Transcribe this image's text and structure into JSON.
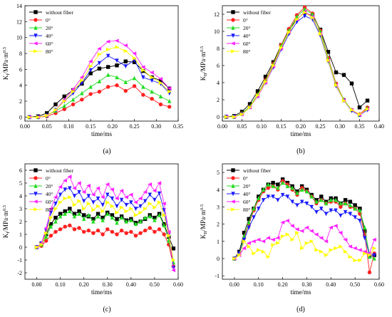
{
  "legend_labels": [
    "without fiber",
    "0°",
    "20°",
    "40°",
    "60°",
    "80°"
  ],
  "series_colors": [
    "#000000",
    "#ff2020",
    "#22dd22",
    "#1a1aff",
    "#ff22ff",
    "#ffff00"
  ],
  "series_markers": [
    "square",
    "circle",
    "triangle-up",
    "triangle-down",
    "triangle-left",
    "triangle-right"
  ],
  "chart_data": [
    {
      "type": "line",
      "caption": "(a)",
      "xlabel": "time/ms",
      "ylabel": "KI/MPa·m0.5",
      "xlim": [
        0,
        0.35
      ],
      "ylim": [
        -0.5,
        14
      ],
      "xticks": [
        "0.00",
        "0.05",
        "0.10",
        "0.15",
        "0.20",
        "0.25",
        "0.30",
        "0.35"
      ],
      "yticks": [
        "0",
        "2",
        "4",
        "6",
        "8",
        "10",
        "12",
        "14"
      ],
      "legend_position": "top-left",
      "x": [
        0.01,
        0.03,
        0.05,
        0.07,
        0.09,
        0.11,
        0.13,
        0.15,
        0.17,
        0.19,
        0.21,
        0.23,
        0.25,
        0.27,
        0.29,
        0.31,
        0.33
      ],
      "series": [
        {
          "name": "without fiber",
          "values": [
            0,
            0.1,
            0.5,
            1.6,
            2.6,
            3.4,
            4.2,
            5.5,
            6.1,
            6.3,
            6.5,
            7.0,
            6.9,
            5.8,
            5.0,
            4.6,
            3.6
          ]
        },
        {
          "name": "0°",
          "values": [
            0,
            0,
            0.1,
            0.5,
            1.0,
            1.6,
            2.2,
            2.9,
            3.2,
            3.8,
            4.0,
            3.3,
            3.9,
            2.8,
            2.3,
            1.6,
            1.3
          ]
        },
        {
          "name": "20°",
          "values": [
            0,
            0,
            0.2,
            0.8,
            1.4,
            2.2,
            3.0,
            3.8,
            4.5,
            5.3,
            5.0,
            4.4,
            4.9,
            3.8,
            3.2,
            2.6,
            2.0
          ]
        },
        {
          "name": "40°",
          "values": [
            0,
            0,
            0.2,
            0.9,
            2.0,
            3.0,
            4.3,
            5.9,
            6.8,
            7.7,
            7.1,
            6.4,
            7.2,
            5.0,
            4.6,
            4.2,
            3.0
          ]
        },
        {
          "name": "60°",
          "values": [
            0,
            0,
            0.2,
            0.9,
            2.2,
            3.5,
            5.0,
            7.0,
            8.6,
            9.5,
            9.6,
            9.0,
            8.0,
            6.3,
            5.6,
            4.8,
            3.6
          ]
        },
        {
          "name": "80°",
          "values": [
            0,
            0,
            0.2,
            0.9,
            2.0,
            3.2,
            4.6,
            6.4,
            7.9,
            8.5,
            8.8,
            8.3,
            7.4,
            5.9,
            5.0,
            4.3,
            3.2
          ]
        }
      ]
    },
    {
      "type": "line",
      "caption": "(b)",
      "xlabel": "time/ms",
      "ylabel": "KII/MPa·m0.5",
      "xlim": [
        0,
        0.4
      ],
      "ylim": [
        -0.5,
        13
      ],
      "xticks": [
        "0.00",
        "0.05",
        "0.10",
        "0.15",
        "0.20",
        "0.25",
        "0.30",
        "0.35",
        "0.40"
      ],
      "yticks": [
        "0",
        "2",
        "4",
        "6",
        "8",
        "10",
        "12"
      ],
      "legend_position": "top-left",
      "x": [
        0.01,
        0.03,
        0.05,
        0.07,
        0.09,
        0.11,
        0.13,
        0.15,
        0.17,
        0.19,
        0.21,
        0.23,
        0.25,
        0.27,
        0.29,
        0.31,
        0.33,
        0.35,
        0.37
      ],
      "series": [
        {
          "name": "without fiber",
          "values": [
            0,
            0.1,
            0.6,
            1.5,
            3.0,
            4.7,
            6.4,
            8.4,
            10.2,
            11.4,
            12.2,
            11.8,
            10.2,
            7.6,
            5.2,
            4.9,
            3.9,
            1.1,
            1.9
          ]
        },
        {
          "name": "0°",
          "values": [
            0,
            0,
            0.4,
            1.2,
            2.6,
            4.3,
            6.2,
            8.4,
            10.3,
            11.9,
            12.8,
            12.1,
            10.1,
            6.9,
            3.9,
            2.0,
            0.8,
            0.3,
            1.1
          ]
        },
        {
          "name": "20°",
          "values": [
            0,
            0,
            0.4,
            1.2,
            2.6,
            4.2,
            6.1,
            8.3,
            10.1,
            11.7,
            12.6,
            12.0,
            10.0,
            6.8,
            3.8,
            2.0,
            0.8,
            0.2,
            1.0
          ]
        },
        {
          "name": "40°",
          "values": [
            0,
            0,
            0.3,
            1.1,
            2.4,
            4.0,
            5.8,
            7.9,
            9.7,
            11.1,
            11.8,
            11.4,
            9.5,
            6.5,
            3.6,
            1.9,
            0.7,
            0.2,
            0.8
          ]
        },
        {
          "name": "60°",
          "values": [
            0,
            0,
            0.3,
            1.1,
            2.4,
            4.0,
            5.9,
            8.0,
            9.9,
            11.4,
            12.3,
            11.7,
            9.7,
            6.6,
            3.7,
            1.9,
            0.8,
            0.2,
            0.9
          ]
        },
        {
          "name": "80°",
          "values": [
            0,
            0,
            0.3,
            1.1,
            2.5,
            4.1,
            6.0,
            8.1,
            9.9,
            11.4,
            12.2,
            11.6,
            9.7,
            6.6,
            3.7,
            1.9,
            0.8,
            0.3,
            0.9
          ]
        }
      ]
    },
    {
      "type": "line",
      "caption": "(c)",
      "xlabel": "time/ms",
      "ylabel": "KI/MPa·m0.5",
      "xlim": [
        -0.05,
        0.6
      ],
      "ylim": [
        -2.5,
        6.5
      ],
      "xticks": [
        "0.00",
        "0.10",
        "0.20",
        "0.30",
        "0.40",
        "0.50",
        "0.60"
      ],
      "yticks": [
        "-2",
        "-1",
        "0",
        "1",
        "2",
        "3",
        "4",
        "5",
        "6"
      ],
      "legend_position": "top-left",
      "x": [
        0.0,
        0.02,
        0.04,
        0.06,
        0.08,
        0.1,
        0.12,
        0.14,
        0.16,
        0.18,
        0.2,
        0.22,
        0.24,
        0.26,
        0.28,
        0.3,
        0.32,
        0.34,
        0.36,
        0.38,
        0.4,
        0.42,
        0.44,
        0.46,
        0.48,
        0.5,
        0.52,
        0.54,
        0.56,
        0.58
      ],
      "series": [
        {
          "name": "without fiber",
          "values": [
            0,
            0.3,
            1.0,
            1.8,
            2.3,
            2.6,
            2.8,
            3.0,
            2.6,
            2.8,
            2.5,
            2.4,
            2.2,
            2.6,
            2.3,
            2.7,
            2.5,
            2.2,
            2.4,
            2.1,
            2.2,
            1.9,
            2.0,
            2.2,
            2.5,
            2.3,
            2.6,
            1.8,
            0.8,
            -0.1
          ]
        },
        {
          "name": "0°",
          "values": [
            0,
            0.1,
            0.5,
            0.9,
            1.2,
            1.4,
            1.6,
            1.7,
            1.4,
            1.5,
            1.2,
            1.3,
            1.1,
            1.3,
            1.0,
            1.4,
            1.2,
            1.0,
            1.3,
            1.1,
            1.2,
            0.9,
            1.1,
            1.3,
            1.5,
            1.2,
            1.4,
            1.0,
            0.2,
            -1.5
          ]
        },
        {
          "name": "20°",
          "values": [
            0,
            0.2,
            0.8,
            1.6,
            2.0,
            2.4,
            2.6,
            2.8,
            2.4,
            2.6,
            2.2,
            2.5,
            2.0,
            2.4,
            2.1,
            2.6,
            2.3,
            1.9,
            2.3,
            2.0,
            2.1,
            1.8,
            2.0,
            2.3,
            2.4,
            2.1,
            2.5,
            1.7,
            0.5,
            -1.2
          ]
        },
        {
          "name": "40°",
          "values": [
            0,
            0.3,
            1.3,
            2.7,
            3.4,
            4.1,
            4.5,
            4.6,
            4.0,
            4.3,
            3.6,
            4.0,
            3.5,
            3.8,
            3.3,
            4.1,
            3.8,
            3.2,
            3.7,
            3.3,
            3.5,
            3.0,
            3.2,
            3.6,
            4.1,
            3.7,
            4.2,
            2.9,
            1.0,
            -1.6
          ]
        },
        {
          "name": "60°",
          "values": [
            0,
            0.3,
            1.5,
            3.0,
            3.9,
            4.7,
            5.2,
            5.5,
            4.6,
            5.0,
            4.3,
            4.8,
            4.1,
            4.6,
            3.9,
            4.9,
            4.5,
            3.8,
            4.4,
            3.9,
            4.1,
            3.5,
            3.8,
            4.3,
            4.9,
            4.4,
            5.0,
            3.4,
            1.2,
            -1.8
          ]
        },
        {
          "name": "80°",
          "values": [
            0,
            0.2,
            1.1,
            2.3,
            3.0,
            3.5,
            3.8,
            3.9,
            3.3,
            3.6,
            3.0,
            3.4,
            2.9,
            3.2,
            2.8,
            3.5,
            3.2,
            2.7,
            3.1,
            2.8,
            3.0,
            2.5,
            2.7,
            3.0,
            3.4,
            3.1,
            3.5,
            2.5,
            0.9,
            -1.0
          ]
        }
      ]
    },
    {
      "type": "line",
      "caption": "(d)",
      "xlabel": "time/ms",
      "ylabel": "KII/MPa·m0.5",
      "xlim": [
        -0.05,
        0.6
      ],
      "ylim": [
        -1.2,
        5.5
      ],
      "xticks": [
        "0.00",
        "0.10",
        "0.20",
        "0.30",
        "0.40",
        "0.50",
        "0.60"
      ],
      "yticks": [
        "-1",
        "0",
        "1",
        "2",
        "3",
        "4",
        "5"
      ],
      "legend_position": "top-left",
      "x": [
        0.0,
        0.02,
        0.04,
        0.06,
        0.08,
        0.1,
        0.12,
        0.14,
        0.16,
        0.18,
        0.2,
        0.22,
        0.24,
        0.26,
        0.28,
        0.3,
        0.32,
        0.34,
        0.36,
        0.38,
        0.4,
        0.42,
        0.44,
        0.46,
        0.48,
        0.5,
        0.52,
        0.54,
        0.56,
        0.58
      ],
      "series": [
        {
          "name": "without fiber",
          "values": [
            0,
            0.4,
            1.5,
            2.3,
            2.9,
            3.6,
            4.0,
            4.3,
            4.4,
            4.3,
            4.6,
            4.4,
            4.2,
            3.9,
            4.2,
            4.0,
            3.7,
            3.4,
            3.6,
            3.3,
            3.5,
            3.5,
            3.2,
            3.4,
            3.3,
            3.1,
            2.9,
            1.6,
            0.2,
            0.2
          ]
        },
        {
          "name": "0°",
          "values": [
            0,
            0.3,
            1.2,
            2.0,
            2.8,
            3.4,
            3.9,
            4.1,
            4.2,
            4.0,
            4.5,
            4.3,
            4.0,
            3.7,
            4.1,
            3.9,
            3.6,
            3.2,
            3.4,
            3.2,
            3.3,
            3.3,
            3.0,
            3.2,
            3.0,
            2.9,
            2.6,
            1.4,
            -0.8,
            0.3
          ]
        },
        {
          "name": "20°",
          "values": [
            0,
            0.3,
            1.3,
            2.1,
            2.9,
            3.5,
            4.0,
            4.3,
            4.2,
            4.1,
            4.4,
            4.2,
            4.1,
            3.8,
            4.0,
            3.9,
            3.6,
            3.3,
            3.4,
            3.2,
            3.4,
            3.4,
            3.2,
            3.2,
            3.1,
            2.9,
            2.8,
            1.8,
            0.1,
            0.0
          ]
        },
        {
          "name": "40°",
          "values": [
            0,
            0.3,
            1.1,
            1.8,
            2.4,
            2.9,
            3.4,
            3.6,
            3.6,
            3.4,
            3.7,
            3.6,
            3.3,
            3.1,
            3.3,
            3.2,
            3.0,
            2.7,
            2.9,
            2.6,
            2.8,
            2.8,
            2.5,
            2.7,
            2.6,
            2.4,
            2.2,
            1.2,
            0.2,
            0.2
          ]
        },
        {
          "name": "60°",
          "values": [
            0,
            0.2,
            0.6,
            0.9,
            1.0,
            1.1,
            1.0,
            1.2,
            1.1,
            1.2,
            2.1,
            2.2,
            1.9,
            1.7,
            1.6,
            1.8,
            1.6,
            1.4,
            1.2,
            1.0,
            1.8,
            1.9,
            1.5,
            1.1,
            0.7,
            0.6,
            0.5,
            0.4,
            0.3,
            1.1
          ]
        },
        {
          "name": "80°",
          "values": [
            0,
            0.2,
            1.0,
            0.7,
            0.3,
            0.5,
            0.4,
            0.1,
            0.8,
            0.9,
            1.3,
            1.4,
            1.1,
            1.5,
            0.6,
            0.9,
            1.0,
            0.5,
            0.4,
            0.2,
            0.5,
            0.6,
            0.7,
            0.4,
            0.1,
            -0.1,
            -0.1,
            0.3,
            0.2,
            0.6
          ]
        }
      ]
    }
  ]
}
